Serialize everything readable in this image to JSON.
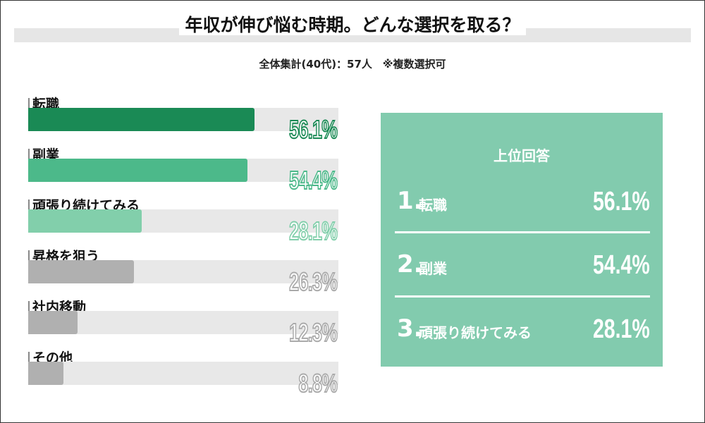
{
  "chart_data": {
    "type": "bar",
    "orientation": "horizontal",
    "title": "年収が伸び悩む時期。どんな選択を取る？",
    "subtitle": "全体集計(40代)：57人　※複数選択可",
    "categories": [
      "転職",
      "副業",
      "頑張り続けてみる",
      "昇格を狙う",
      "社内移動",
      "その他"
    ],
    "values": [
      56.1,
      54.4,
      28.1,
      26.3,
      12.3,
      8.8
    ],
    "labels": [
      "56.1%",
      "54.4%",
      "28.1%",
      "26.3%",
      "12.3%",
      "8.8%"
    ],
    "xlim": [
      0,
      77
    ],
    "colors": [
      "#1a8a55",
      "#4cb98a",
      "#82cfab",
      "#b0b0b0",
      "#b0b0b0",
      "#b0b0b0"
    ],
    "label_stroke_colors": [
      "#1a8a55",
      "#4cb98a",
      "#82cfab",
      "#aaaaaa",
      "#aaaaaa",
      "#aaaaaa"
    ],
    "track_color": "#e8e8e8"
  },
  "panel": {
    "title": "上位回答",
    "background": "#82cbae",
    "items": [
      {
        "num": "1.",
        "label": "転職",
        "value": "56.1%"
      },
      {
        "num": "2.",
        "label": "副業",
        "value": "54.4%"
      },
      {
        "num": "3.",
        "label": "頑張り続けてみる",
        "value": "28.1%"
      }
    ]
  }
}
